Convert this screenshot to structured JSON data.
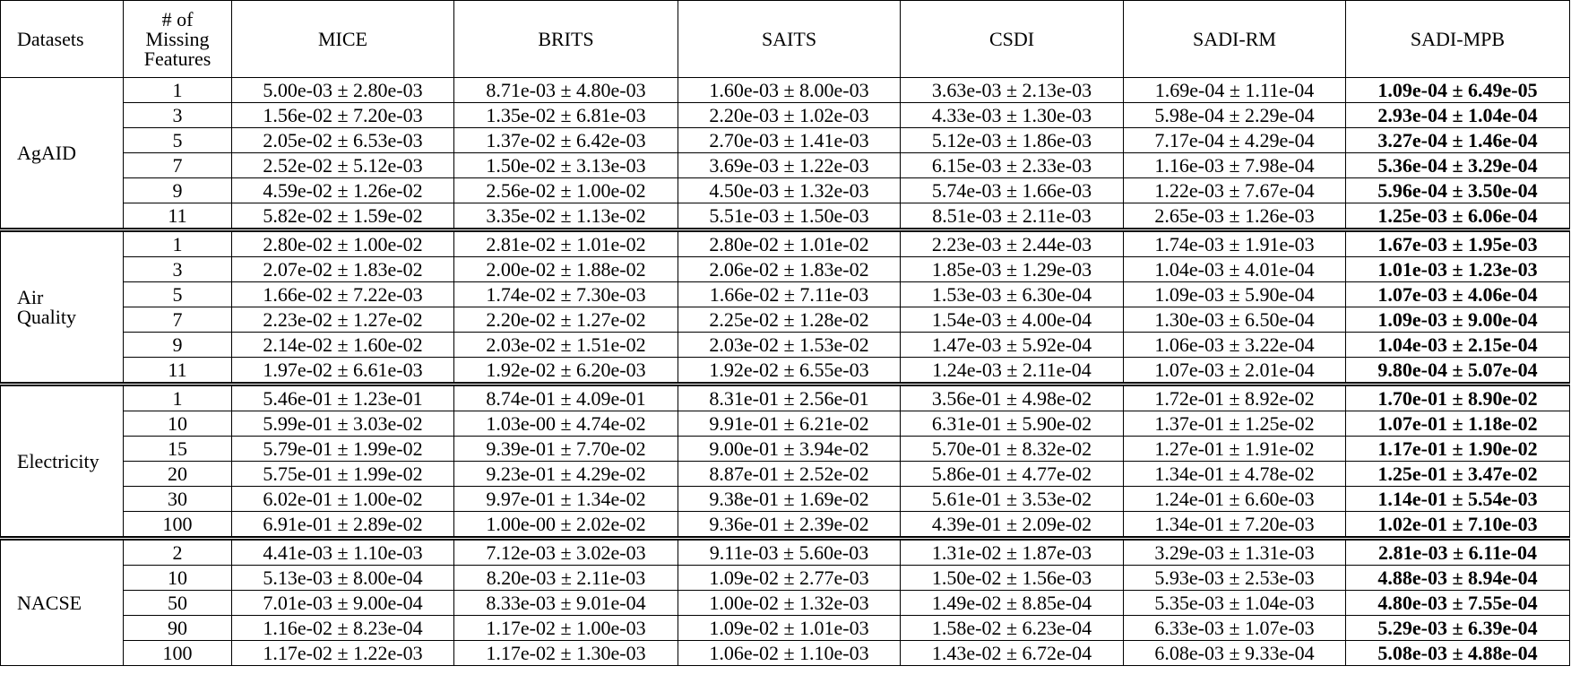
{
  "table": {
    "headers": [
      {
        "lines": [
          "Datasets"
        ]
      },
      {
        "lines": [
          "# of",
          "Missing",
          "Features"
        ]
      },
      {
        "lines": [
          "MICE"
        ]
      },
      {
        "lines": [
          "BRITS"
        ]
      },
      {
        "lines": [
          "SAITS"
        ]
      },
      {
        "lines": [
          "CSDI"
        ]
      },
      {
        "lines": [
          "SADI-RM"
        ]
      },
      {
        "lines": [
          "SADI-MPB"
        ]
      }
    ],
    "bold_column": "SADI-MPB",
    "groups": [
      {
        "dataset": [
          "AgAID"
        ],
        "rows": [
          [
            "1",
            "5.00e-03 ± 2.80e-03",
            "8.71e-03 ± 4.80e-03",
            "1.60e-03 ± 8.00e-03",
            "3.63e-03 ± 2.13e-03",
            "1.69e-04 ± 1.11e-04",
            "1.09e-04 ± 6.49e-05"
          ],
          [
            "3",
            "1.56e-02 ± 7.20e-03",
            "1.35e-02 ± 6.81e-03",
            "2.20e-03 ± 1.02e-03",
            "4.33e-03 ± 1.30e-03",
            "5.98e-04 ± 2.29e-04",
            "2.93e-04 ± 1.04e-04"
          ],
          [
            "5",
            "2.05e-02 ± 6.53e-03",
            "1.37e-02 ± 6.42e-03",
            "2.70e-03 ± 1.41e-03",
            "5.12e-03 ± 1.86e-03",
            "7.17e-04 ± 4.29e-04",
            "3.27e-04 ± 1.46e-04"
          ],
          [
            "7",
            "2.52e-02 ± 5.12e-03",
            "1.50e-02 ± 3.13e-03",
            "3.69e-03 ± 1.22e-03",
            "6.15e-03 ± 2.33e-03",
            "1.16e-03 ± 7.98e-04",
            "5.36e-04 ± 3.29e-04"
          ],
          [
            "9",
            "4.59e-02 ± 1.26e-02",
            "2.56e-02 ± 1.00e-02",
            "4.50e-03 ± 1.32e-03",
            "5.74e-03 ± 1.66e-03",
            "1.22e-03 ± 7.67e-04",
            "5.96e-04 ± 3.50e-04"
          ],
          [
            "11",
            "5.82e-02 ± 1.59e-02",
            "3.35e-02 ± 1.13e-02",
            "5.51e-03 ± 1.50e-03",
            "8.51e-03 ± 2.11e-03",
            "2.65e-03 ± 1.26e-03",
            "1.25e-03 ± 6.06e-04"
          ]
        ]
      },
      {
        "dataset": [
          "Air",
          "Quality"
        ],
        "rows": [
          [
            "1",
            "2.80e-02 ± 1.00e-02",
            "2.81e-02 ± 1.01e-02",
            "2.80e-02 ± 1.01e-02",
            "2.23e-03 ± 2.44e-03",
            "1.74e-03 ± 1.91e-03",
            "1.67e-03 ± 1.95e-03"
          ],
          [
            "3",
            "2.07e-02 ± 1.83e-02",
            "2.00e-02 ± 1.88e-02",
            "2.06e-02 ± 1.83e-02",
            "1.85e-03 ± 1.29e-03",
            "1.04e-03 ± 4.01e-04",
            "1.01e-03 ± 1.23e-03"
          ],
          [
            "5",
            "1.66e-02 ± 7.22e-03",
            "1.74e-02 ± 7.30e-03",
            "1.66e-02 ± 7.11e-03",
            "1.53e-03 ± 6.30e-04",
            "1.09e-03 ± 5.90e-04",
            "1.07e-03 ± 4.06e-04"
          ],
          [
            "7",
            "2.23e-02 ± 1.27e-02",
            "2.20e-02 ± 1.27e-02",
            "2.25e-02 ± 1.28e-02",
            "1.54e-03 ± 4.00e-04",
            "1.30e-03 ± 6.50e-04",
            "1.09e-03 ± 9.00e-04"
          ],
          [
            "9",
            "2.14e-02 ± 1.60e-02",
            "2.03e-02 ± 1.51e-02",
            "2.03e-02 ± 1.53e-02",
            "1.47e-03 ± 5.92e-04",
            "1.06e-03 ± 3.22e-04",
            "1.04e-03 ± 2.15e-04"
          ],
          [
            "11",
            "1.97e-02 ± 6.61e-03",
            "1.92e-02 ± 6.20e-03",
            "1.92e-02 ± 6.55e-03",
            "1.24e-03 ± 2.11e-04",
            "1.07e-03 ± 2.01e-04",
            "9.80e-04 ± 5.07e-04"
          ]
        ]
      },
      {
        "dataset": [
          "Electricity"
        ],
        "rows": [
          [
            "1",
            "5.46e-01 ± 1.23e-01",
            "8.74e-01 ± 4.09e-01",
            "8.31e-01 ± 2.56e-01",
            "3.56e-01 ± 4.98e-02",
            "1.72e-01 ± 8.92e-02",
            "1.70e-01 ± 8.90e-02"
          ],
          [
            "10",
            "5.99e-01 ± 3.03e-02",
            "1.03e-00 ± 4.74e-02",
            "9.91e-01 ± 6.21e-02",
            "6.31e-01 ± 5.90e-02",
            "1.37e-01 ± 1.25e-02",
            "1.07e-01 ± 1.18e-02"
          ],
          [
            "15",
            "5.79e-01 ± 1.99e-02",
            "9.39e-01 ± 7.70e-02",
            "9.00e-01 ± 3.94e-02",
            "5.70e-01 ± 8.32e-02",
            "1.27e-01 ± 1.91e-02",
            "1.17e-01 ± 1.90e-02"
          ],
          [
            "20",
            "5.75e-01 ± 1.99e-02",
            "9.23e-01 ± 4.29e-02",
            "8.87e-01 ± 2.52e-02",
            "5.86e-01 ± 4.77e-02",
            "1.34e-01 ± 4.78e-02",
            "1.25e-01 ± 3.47e-02"
          ],
          [
            "30",
            "6.02e-01 ± 1.00e-02",
            "9.97e-01 ± 1.34e-02",
            "9.38e-01 ± 1.69e-02",
            "5.61e-01 ± 3.53e-02",
            "1.24e-01 ± 6.60e-03",
            "1.14e-01 ± 5.54e-03"
          ],
          [
            "100",
            "6.91e-01 ± 2.89e-02",
            "1.00e-00 ± 2.02e-02",
            "9.36e-01 ± 2.39e-02",
            "4.39e-01 ± 2.09e-02",
            "1.34e-01 ± 7.20e-03",
            "1.02e-01 ± 7.10e-03"
          ]
        ]
      },
      {
        "dataset": [
          "NACSE"
        ],
        "rows": [
          [
            "2",
            "4.41e-03 ± 1.10e-03",
            "7.12e-03 ± 3.02e-03",
            "9.11e-03 ± 5.60e-03",
            "1.31e-02 ± 1.87e-03",
            "3.29e-03 ± 1.31e-03",
            "2.81e-03 ± 6.11e-04"
          ],
          [
            "10",
            "5.13e-03 ± 8.00e-04",
            "8.20e-03 ± 2.11e-03",
            "1.09e-02 ± 2.77e-03",
            "1.50e-02 ± 1.56e-03",
            "5.93e-03 ± 2.53e-03",
            "4.88e-03 ± 8.94e-04"
          ],
          [
            "50",
            "7.01e-03 ± 9.00e-04",
            "8.33e-03 ± 9.01e-04",
            "1.00e-02 ± 1.32e-03",
            "1.49e-02 ± 8.85e-04",
            "5.35e-03 ± 1.04e-03",
            "4.80e-03 ± 7.55e-04"
          ],
          [
            "90",
            "1.16e-02 ± 8.23e-04",
            "1.17e-02 ± 1.00e-03",
            "1.09e-02 ± 1.01e-03",
            "1.58e-02 ± 6.23e-04",
            "6.33e-03 ± 1.07e-03",
            "5.29e-03 ± 6.39e-04"
          ],
          [
            "100",
            "1.17e-02 ± 1.22e-03",
            "1.17e-02 ± 1.30e-03",
            "1.06e-02 ± 1.10e-03",
            "1.43e-02 ± 6.72e-04",
            "6.08e-03 ± 9.33e-04",
            "5.08e-03 ± 4.88e-04"
          ]
        ]
      }
    ]
  }
}
